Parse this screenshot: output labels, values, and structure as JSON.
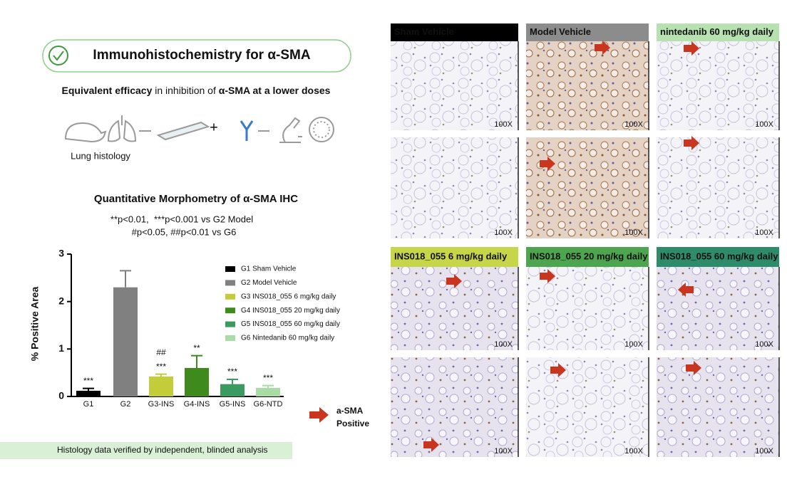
{
  "header": {
    "title": "Immunohistochemistry for α-SMA",
    "subheading": [
      "Equivalent efficacy",
      " in inhibition of ",
      "α-SMA at a lower doses"
    ],
    "workflow_label": "Lung histology"
  },
  "chart_data": {
    "type": "bar",
    "title": "Quantitative Morphometry of α-SMA IHC",
    "subtitle": [
      "**p<0.01,  ***p<0.001 vs G2 Model",
      "#p<0.05, ##p<0.01 vs G6"
    ],
    "categories": [
      "G1",
      "G2",
      "G3-INS",
      "G4-INS",
      "G5-INS",
      "G6-NTD"
    ],
    "values": [
      0.12,
      2.3,
      0.42,
      0.6,
      0.26,
      0.18
    ],
    "errors": [
      0.05,
      0.35,
      0.05,
      0.26,
      0.1,
      0.05
    ],
    "colors": [
      "#000000",
      "#808080",
      "#c3cd3a",
      "#3e8a1d",
      "#3a9a5f",
      "#a9dba4"
    ],
    "legend": [
      "G1 Sham Vehicle",
      "G2 Model Vehicle",
      "G3 INS018_055 6 mg/kg daily",
      "G4 INS018_055 20 mg/kg daily",
      "G5 INS018_055 60 mg/kg daily",
      "G6 Nintedanib 60 mg/kg daily"
    ],
    "significance": [
      "***",
      null,
      "***",
      "**",
      "***",
      "***"
    ],
    "significance_g6": [
      null,
      null,
      "##",
      null,
      null,
      null
    ],
    "ylabel": "% Positive Area",
    "ylim": [
      0,
      3
    ],
    "yticks": [
      0,
      1,
      2,
      3
    ]
  },
  "marker_legend": [
    "a-SMA",
    "Positive"
  ],
  "footer": "Histology data verified by independent, blinded analysis",
  "panels": [
    {
      "label": "Sham Vehicle",
      "color": "#000000",
      "images": [
        "100X",
        "100X"
      ]
    },
    {
      "label": "Model Vehicle",
      "color": "#8c8c8c",
      "images": [
        "100X",
        "100X"
      ]
    },
    {
      "label": "nintedanib 60 mg/kg daily",
      "color": "#b7e1b1",
      "images": [
        "100X",
        "100X"
      ]
    },
    {
      "label": "INS018_055 6 mg/kg daily",
      "color": "#c7d548",
      "images": [
        "100X",
        "100X"
      ]
    },
    {
      "label": "INS018_055 20 mg/kg daily",
      "color": "#4da64f",
      "images": [
        "100X",
        "100X"
      ]
    },
    {
      "label": "INS018_055 60 mg/kg daily",
      "color": "#2f8c6b",
      "images": [
        "100X",
        "100X"
      ]
    }
  ]
}
